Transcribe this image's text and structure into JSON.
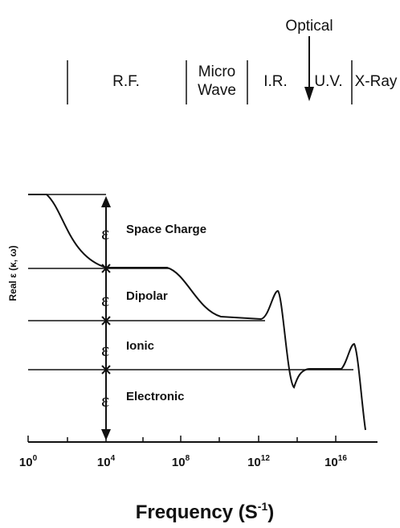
{
  "bands": {
    "optical": "Optical",
    "labels": [
      "R.F.",
      "Micro",
      "Wave",
      "I.R.",
      "U.V.",
      "X-Ray"
    ]
  },
  "y_axis_title": "Real ε (κ, ω)",
  "x_axis_title": {
    "text": "Frequency (S",
    "sup": "-1",
    "close": ")"
  },
  "x_ticks": [
    {
      "base": "10",
      "exp": "0"
    },
    {
      "base": "10",
      "exp": "4"
    },
    {
      "base": "10",
      "exp": "8"
    },
    {
      "base": "10",
      "exp": "12"
    },
    {
      "base": "10",
      "exp": "16"
    }
  ],
  "mechanisms": [
    {
      "symbol": "ε",
      "label": "Space Charge"
    },
    {
      "symbol": "ε",
      "label": "Dipolar"
    },
    {
      "symbol": "ε",
      "label": "Ionic"
    },
    {
      "symbol": "ε",
      "label": "Electronic"
    }
  ]
}
